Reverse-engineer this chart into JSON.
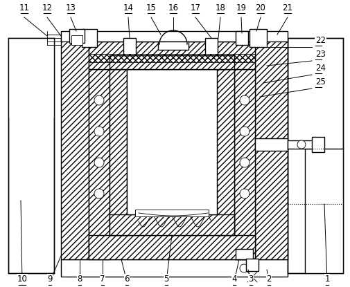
{
  "bg_color": "#ffffff",
  "lc": "#000000",
  "lw": 1.0,
  "lw_thin": 0.6,
  "lw_thick": 1.4
}
